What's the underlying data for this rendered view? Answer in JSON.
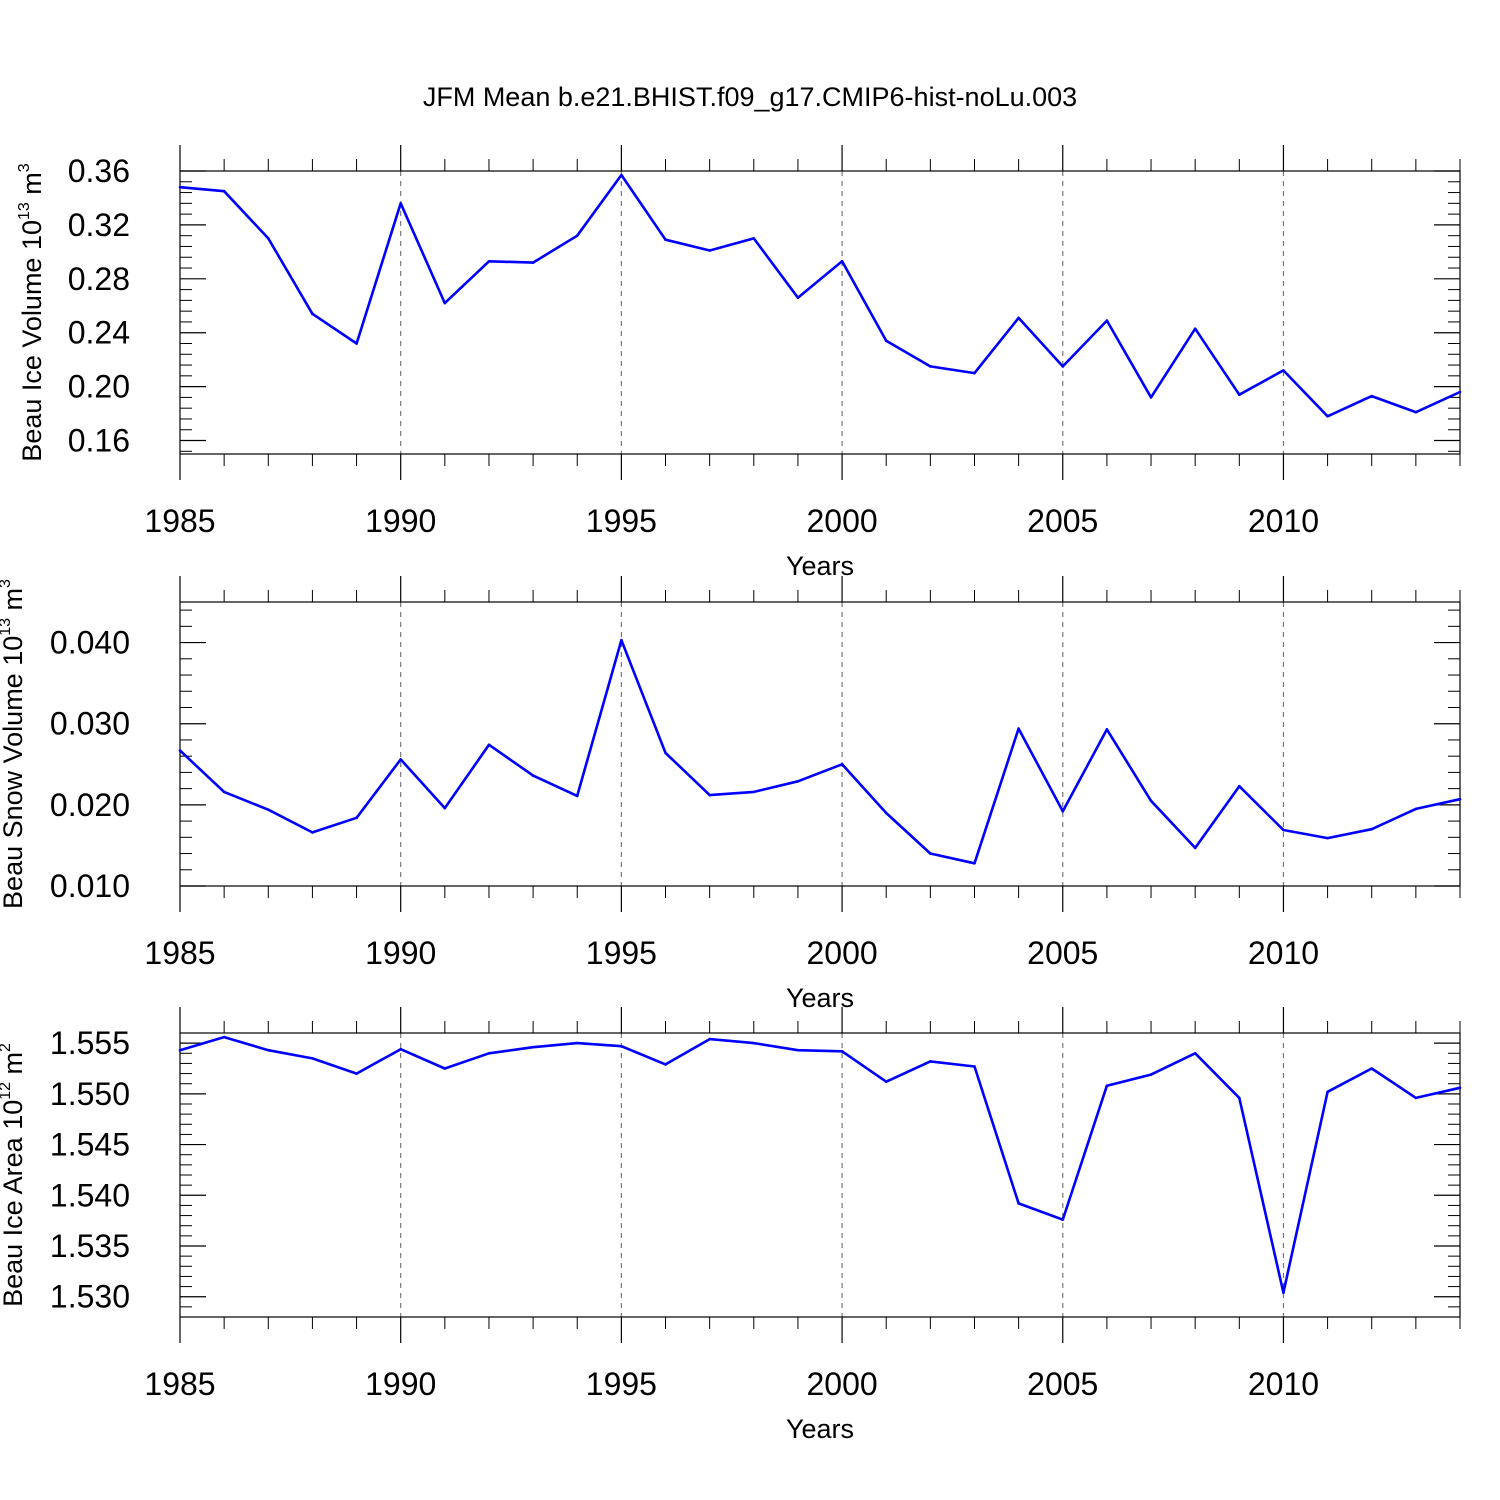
{
  "chart_data": {
    "title": "JFM Mean b.e21.BHIST.f09_g17.CMIP6-hist-noLu.003",
    "line_color": "#0000ff",
    "panels": [
      {
        "type": "line",
        "ylabel": "Beau Ice Volume 10",
        "ylabel_exp": "13",
        "ylabel_units": "m",
        "ylabel_units_exp": "3",
        "xlabel": "Years",
        "xlim": [
          1985,
          2014
        ],
        "ylim": [
          0.15,
          0.36
        ],
        "yticks": [
          0.16,
          0.2,
          0.24,
          0.28,
          0.32,
          0.36
        ],
        "ytick_labels": [
          "0.16",
          "0.20",
          "0.24",
          "0.28",
          "0.32",
          "0.36"
        ],
        "xticks": [
          1985,
          1990,
          1995,
          2000,
          2005,
          2010
        ],
        "xtick_labels": [
          "1985",
          "1990",
          "1995",
          "2000",
          "2005",
          "2010"
        ],
        "x": [
          1985,
          1986,
          1987,
          1988,
          1989,
          1990,
          1991,
          1992,
          1993,
          1994,
          1995,
          1996,
          1997,
          1998,
          1999,
          2000,
          2001,
          2002,
          2003,
          2004,
          2005,
          2006,
          2007,
          2008,
          2009,
          2010,
          2011,
          2012,
          2013,
          2014
        ],
        "y": [
          0.348,
          0.345,
          0.31,
          0.254,
          0.232,
          0.336,
          0.262,
          0.293,
          0.292,
          0.312,
          0.357,
          0.309,
          0.301,
          0.31,
          0.266,
          0.293,
          0.234,
          0.215,
          0.21,
          0.251,
          0.215,
          0.249,
          0.192,
          0.243,
          0.194,
          0.212,
          0.178,
          0.193,
          0.181,
          0.196
        ]
      },
      {
        "type": "line",
        "ylabel": "Beau Snow Volume 10",
        "ylabel_exp": "13",
        "ylabel_units": "m",
        "ylabel_units_exp": "3",
        "xlabel": "Years",
        "xlim": [
          1985,
          2014
        ],
        "ylim": [
          0.01,
          0.045
        ],
        "yticks": [
          0.01,
          0.02,
          0.03,
          0.04
        ],
        "ytick_labels": [
          "0.010",
          "0.020",
          "0.030",
          "0.040"
        ],
        "xticks": [
          1985,
          1990,
          1995,
          2000,
          2005,
          2010
        ],
        "xtick_labels": [
          "1985",
          "1990",
          "1995",
          "2000",
          "2005",
          "2010"
        ],
        "x": [
          1985,
          1986,
          1987,
          1988,
          1989,
          1990,
          1991,
          1992,
          1993,
          1994,
          1995,
          1996,
          1997,
          1998,
          1999,
          2000,
          2001,
          2002,
          2003,
          2004,
          2005,
          2006,
          2007,
          2008,
          2009,
          2010,
          2011,
          2012,
          2013,
          2014
        ],
        "y": [
          0.0267,
          0.0216,
          0.0194,
          0.0166,
          0.0184,
          0.0256,
          0.0196,
          0.0274,
          0.0236,
          0.0211,
          0.0403,
          0.0264,
          0.0212,
          0.0216,
          0.0229,
          0.025,
          0.019,
          0.014,
          0.0128,
          0.0294,
          0.0192,
          0.0293,
          0.0205,
          0.0147,
          0.0223,
          0.0169,
          0.0159,
          0.017,
          0.0195,
          0.0207
        ]
      },
      {
        "type": "line",
        "ylabel": "Beau Ice Area 10",
        "ylabel_exp": "12",
        "ylabel_units": "m",
        "ylabel_units_exp": "2",
        "xlabel": "Years",
        "xlim": [
          1985,
          2014
        ],
        "ylim": [
          1.528,
          1.556
        ],
        "yticks": [
          1.53,
          1.535,
          1.54,
          1.545,
          1.55,
          1.555
        ],
        "ytick_labels": [
          "1.530",
          "1.535",
          "1.540",
          "1.545",
          "1.550",
          "1.555"
        ],
        "xticks": [
          1985,
          1990,
          1995,
          2000,
          2005,
          2010
        ],
        "xtick_labels": [
          "1985",
          "1990",
          "1995",
          "2000",
          "2005",
          "2010"
        ],
        "x": [
          1985,
          1986,
          1987,
          1988,
          1989,
          1990,
          1991,
          1992,
          1993,
          1994,
          1995,
          1996,
          1997,
          1998,
          1999,
          2000,
          2001,
          2002,
          2003,
          2004,
          2005,
          2006,
          2007,
          2008,
          2009,
          2010,
          2011,
          2012,
          2013,
          2014
        ],
        "y": [
          1.5543,
          1.5556,
          1.5543,
          1.5535,
          1.552,
          1.5544,
          1.5525,
          1.554,
          1.5546,
          1.555,
          1.5547,
          1.5529,
          1.5554,
          1.555,
          1.5543,
          1.5542,
          1.5512,
          1.5532,
          1.5527,
          1.5392,
          1.5376,
          1.5508,
          1.5519,
          1.554,
          1.5496,
          1.5304,
          1.5502,
          1.5525,
          1.5496,
          1.5506
        ]
      }
    ]
  }
}
